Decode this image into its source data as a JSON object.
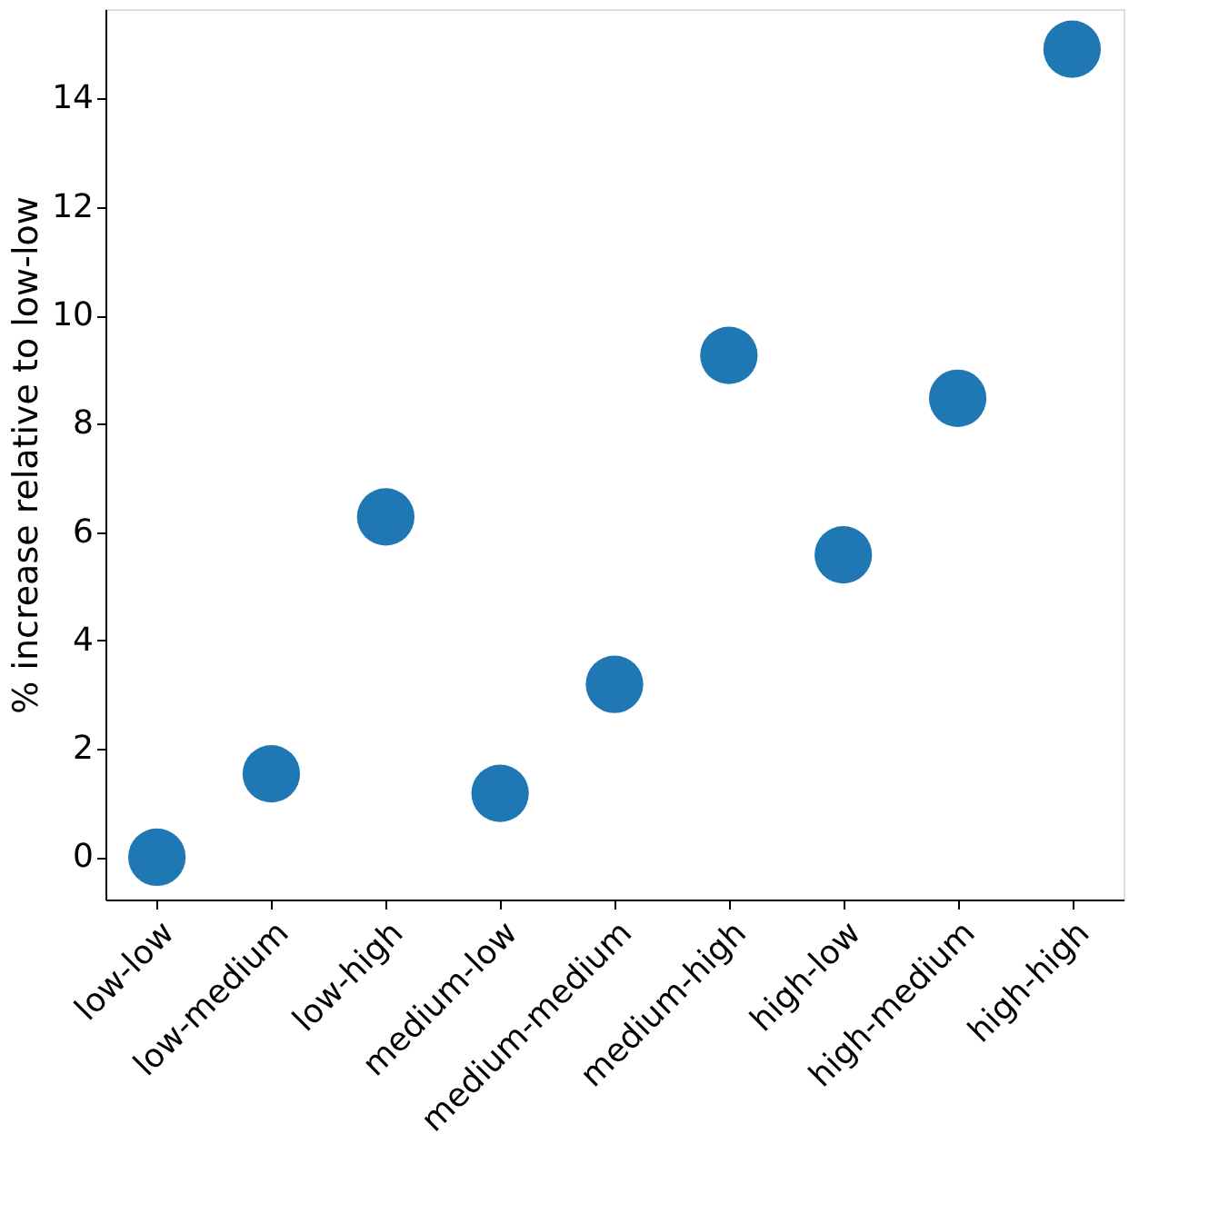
{
  "chart_data": {
    "type": "scatter",
    "ylabel": "% increase relative to low-low",
    "categories": [
      "low-low",
      "low-medium",
      "low-high",
      "medium-low",
      "medium-medium",
      "medium-high",
      "high-low",
      "high-medium",
      "high-high"
    ],
    "series": [
      {
        "color": "#1f77b4",
        "values": [
          0,
          1.54,
          6.28,
          1.18,
          3.19,
          9.26,
          5.58,
          8.47,
          14.91
        ]
      }
    ],
    "ylim": [
      -0.78,
      15.65
    ],
    "yticks": [
      0,
      2,
      4,
      6,
      8,
      10,
      12,
      14
    ],
    "grid": false,
    "marker": "circle"
  }
}
